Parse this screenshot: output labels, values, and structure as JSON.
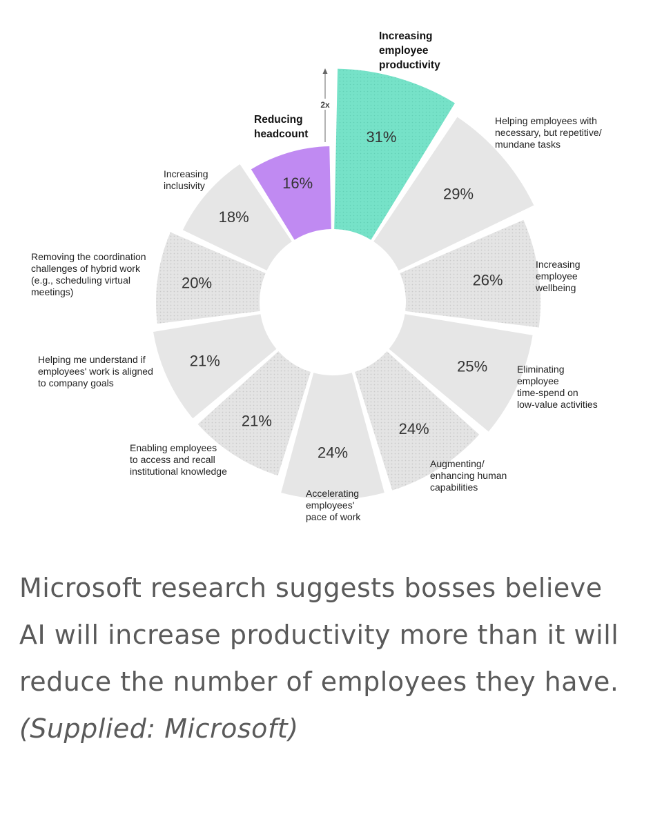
{
  "chart_data": {
    "type": "pie",
    "style": "radial-sectors",
    "slices": [
      {
        "label": "Increasing employee productivity",
        "value": 31,
        "value_label": "31%",
        "color": "#76e2c8"
      },
      {
        "label": "Helping employees with necessary, but repetitive/ mundane tasks",
        "value": 29,
        "value_label": "29%",
        "color": "#e6e6e6"
      },
      {
        "label": "Increasing employee wellbeing",
        "value": 26,
        "value_label": "26%",
        "color": "#e6e6e6",
        "dotted": true
      },
      {
        "label": "Eliminating employee time-spend on low-value activities",
        "value": 25,
        "value_label": "25%",
        "color": "#e6e6e6"
      },
      {
        "label": "Augmenting/ enhancing human capabilities",
        "value": 24,
        "value_label": "24%",
        "color": "#e6e6e6",
        "dotted": true
      },
      {
        "label": "Accelerating employees' pace of work",
        "value": 24,
        "value_label": "24%",
        "color": "#e6e6e6"
      },
      {
        "label": "Enabling employees to access and recall institutional knowledge",
        "value": 21,
        "value_label": "21%",
        "color": "#e6e6e6",
        "dotted": true
      },
      {
        "label": "Helping me understand if employees' work is aligned to company goals",
        "value": 21,
        "value_label": "21%",
        "color": "#e6e6e6"
      },
      {
        "label": "Removing the coordination challenges of hybrid work (e.g., scheduling virtual meetings)",
        "value": 20,
        "value_label": "20%",
        "color": "#e6e6e6",
        "dotted": true
      },
      {
        "label": "Increasing inclusivity",
        "value": 18,
        "value_label": "18%",
        "color": "#e6e6e6"
      },
      {
        "label": "Reducing headcount",
        "value": 16,
        "value_label": "16%",
        "color": "#c08af2"
      }
    ],
    "annotation": "2x",
    "highlighted": [
      "Increasing employee productivity",
      "Reducing headcount"
    ]
  },
  "labels": {
    "l0": "Increasing\nemployee\nproductivity",
    "l1": "Helping employees with\nnecessary, but repetitive/\nmundane tasks",
    "l2": "Increasing\nemployee\nwellbeing",
    "l3": "Eliminating\nemployee\ntime-spend on\nlow-value activities",
    "l4": "Augmenting/\nenhancing human\ncapabilities",
    "l5": "Accelerating\nemployees'\npace of work",
    "l6": "Enabling employees\nto access and recall\ninstitutional knowledge",
    "l7": "Helping me understand if\nemployees' work is aligned\nto company goals",
    "l8": "Removing the coordination\nchallenges of hybrid work\n(e.g., scheduling virtual\nmeetings)",
    "l9": "Increasing\ninclusivity",
    "l10": "Reducing\nheadcount"
  },
  "caption": {
    "text": "Microsoft research suggests bosses believe AI will increase productivity more than it will reduce the number of employees they have. ",
    "source": "(Supplied: Microsoft)"
  },
  "colors": {
    "teal": "#76e2c8",
    "purple": "#c08af2",
    "grey": "#e6e6e6",
    "text": "#5a5a5a"
  }
}
